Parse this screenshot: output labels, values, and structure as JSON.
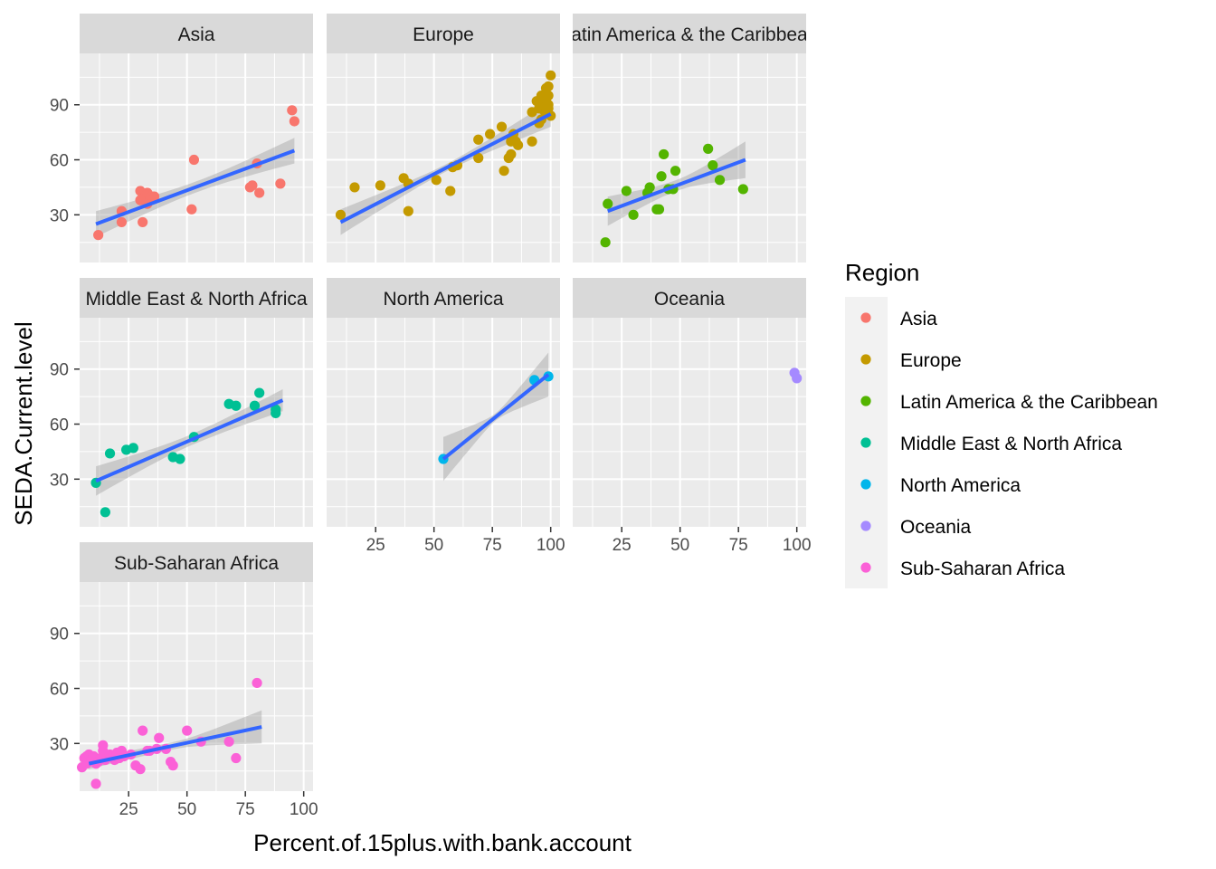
{
  "chart_data": {
    "type": "scatter",
    "xlabel": "Percent.of.15plus.with.bank.account",
    "ylabel": "SEDA.Current.level",
    "xlim": [
      4,
      104
    ],
    "ylim": [
      4,
      118
    ],
    "x_ticks": [
      25,
      50,
      75,
      100
    ],
    "y_ticks": [
      30,
      60,
      90
    ],
    "grid": true,
    "smooth": "linear fit with 95% confidence band",
    "legend": {
      "title": "Region",
      "position": "right"
    },
    "facets": [
      {
        "name": "Asia",
        "color": "#F8766D",
        "fit": {
          "x": [
            11,
            96
          ],
          "y": [
            25,
            65
          ],
          "se_left": 7,
          "se_right": 7,
          "se_min": 3
        },
        "points": [
          [
            12,
            19
          ],
          [
            22,
            32
          ],
          [
            22,
            26
          ],
          [
            30,
            43
          ],
          [
            30,
            38
          ],
          [
            31,
            26
          ],
          [
            32,
            40
          ],
          [
            33,
            42
          ],
          [
            34,
            38
          ],
          [
            33,
            36
          ],
          [
            35,
            40
          ],
          [
            36,
            40
          ],
          [
            53,
            60
          ],
          [
            52,
            33
          ],
          [
            77,
            45
          ],
          [
            78,
            46
          ],
          [
            80,
            58
          ],
          [
            81,
            42
          ],
          [
            90,
            47
          ],
          [
            95,
            87
          ],
          [
            96,
            81
          ]
        ]
      },
      {
        "name": "Europe",
        "color": "#C49A00",
        "fit": {
          "x": [
            10,
            100
          ],
          "y": [
            26,
            85
          ],
          "se_left": 7,
          "se_right": 7,
          "se_min": 2
        },
        "points": [
          [
            10,
            30
          ],
          [
            16,
            45
          ],
          [
            27,
            46
          ],
          [
            37,
            50
          ],
          [
            39,
            47
          ],
          [
            39,
            32
          ],
          [
            51,
            49
          ],
          [
            57,
            43
          ],
          [
            58,
            56
          ],
          [
            60,
            57
          ],
          [
            69,
            71
          ],
          [
            69,
            61
          ],
          [
            74,
            74
          ],
          [
            79,
            78
          ],
          [
            80,
            54
          ],
          [
            82,
            61
          ],
          [
            83,
            63
          ],
          [
            83,
            70
          ],
          [
            84,
            74
          ],
          [
            85,
            70
          ],
          [
            86,
            68
          ],
          [
            92,
            86
          ],
          [
            92,
            70
          ],
          [
            94,
            92
          ],
          [
            95,
            88
          ],
          [
            95,
            80
          ],
          [
            96,
            82
          ],
          [
            96,
            95
          ],
          [
            97,
            87
          ],
          [
            97,
            92
          ],
          [
            98,
            93
          ],
          [
            98,
            89
          ],
          [
            98,
            86
          ],
          [
            98,
            99
          ],
          [
            99,
            88
          ],
          [
            99,
            95
          ],
          [
            99,
            90
          ],
          [
            100,
            84
          ],
          [
            99,
            100
          ],
          [
            100,
            106
          ]
        ]
      },
      {
        "name": "Latin America & the Caribbean",
        "color": "#53B400",
        "fit": {
          "x": [
            19,
            78
          ],
          "y": [
            32,
            60
          ],
          "se_left": 8,
          "se_right": 10,
          "se_min": 3
        },
        "points": [
          [
            18,
            15
          ],
          [
            19,
            36
          ],
          [
            27,
            43
          ],
          [
            30,
            30
          ],
          [
            36,
            42
          ],
          [
            37,
            45
          ],
          [
            40,
            33
          ],
          [
            41,
            33
          ],
          [
            42,
            51
          ],
          [
            43,
            63
          ],
          [
            45,
            44
          ],
          [
            47,
            44
          ],
          [
            48,
            54
          ],
          [
            62,
            66
          ],
          [
            64,
            57
          ],
          [
            67,
            49
          ],
          [
            77,
            44
          ]
        ]
      },
      {
        "name": "Middle East & North Africa",
        "color": "#00C094",
        "fit": {
          "x": [
            11,
            91
          ],
          "y": [
            29,
            73
          ],
          "se_left": 8,
          "se_right": 6,
          "se_min": 3
        },
        "points": [
          [
            11,
            28
          ],
          [
            15,
            12
          ],
          [
            17,
            44
          ],
          [
            24,
            46
          ],
          [
            27,
            47
          ],
          [
            44,
            42
          ],
          [
            47,
            41
          ],
          [
            53,
            53
          ],
          [
            68,
            71
          ],
          [
            71,
            70
          ],
          [
            79,
            70
          ],
          [
            81,
            77
          ],
          [
            88,
            68
          ],
          [
            88,
            66
          ]
        ]
      },
      {
        "name": "North America",
        "color": "#00B6EB",
        "fit": {
          "x": [
            54,
            99
          ],
          "y": [
            41,
            87
          ],
          "se_left": 12,
          "se_right": 12,
          "se_min": 2
        },
        "points": [
          [
            54,
            41
          ],
          [
            93,
            84
          ],
          [
            99,
            86
          ]
        ]
      },
      {
        "name": "Oceania",
        "color": "#A58AFF",
        "fit": null,
        "points": [
          [
            99,
            88
          ],
          [
            100,
            85
          ]
        ]
      },
      {
        "name": "Sub-Saharan Africa",
        "color": "#FB61D7",
        "fit": {
          "x": [
            8,
            82
          ],
          "y": [
            19,
            39
          ],
          "se_left": 3,
          "se_right": 9,
          "se_min": 2
        },
        "points": [
          [
            5,
            17
          ],
          [
            6,
            22
          ],
          [
            7,
            23
          ],
          [
            7,
            19
          ],
          [
            8,
            24
          ],
          [
            9,
            21
          ],
          [
            10,
            23
          ],
          [
            11,
            8
          ],
          [
            11,
            19
          ],
          [
            12,
            20
          ],
          [
            13,
            22
          ],
          [
            14,
            26
          ],
          [
            14,
            29
          ],
          [
            15,
            21
          ],
          [
            17,
            24
          ],
          [
            19,
            21
          ],
          [
            20,
            25
          ],
          [
            21,
            22
          ],
          [
            22,
            26
          ],
          [
            23,
            23
          ],
          [
            26,
            24
          ],
          [
            28,
            18
          ],
          [
            30,
            16
          ],
          [
            31,
            37
          ],
          [
            33,
            26
          ],
          [
            34,
            26
          ],
          [
            37,
            27
          ],
          [
            38,
            33
          ],
          [
            41,
            27
          ],
          [
            43,
            20
          ],
          [
            44,
            18
          ],
          [
            50,
            37
          ],
          [
            56,
            31
          ],
          [
            68,
            31
          ],
          [
            71,
            22
          ],
          [
            80,
            63
          ]
        ]
      }
    ]
  }
}
